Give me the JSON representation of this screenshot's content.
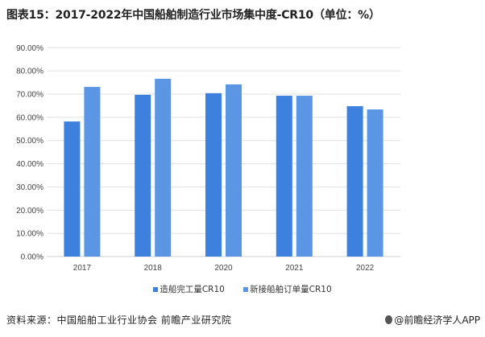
{
  "title": "图表15：2017-2022年中国船舶制造行业市场集中度-CR10（单位：%）",
  "chart_data": {
    "type": "bar",
    "categories": [
      "2017",
      "2018",
      "2020",
      "2021",
      "2022"
    ],
    "series": [
      {
        "name": "造船完工量CR10",
        "values": [
          58.2,
          69.7,
          70.4,
          69.3,
          64.8
        ],
        "color": "#3d80dd"
      },
      {
        "name": "新接船舶订单量CR10",
        "values": [
          73.1,
          76.6,
          74.2,
          69.3,
          63.4
        ],
        "color": "#5a96e3"
      }
    ],
    "ylim": [
      0,
      90
    ],
    "yticks": [
      "0.00%",
      "10.00%",
      "20.00%",
      "30.00%",
      "40.00%",
      "50.00%",
      "60.00%",
      "70.00%",
      "80.00%",
      "90.00%"
    ],
    "grid": true,
    "legend": "bottom"
  },
  "footer": {
    "source": "资料来源：中国船舶工业行业协会 前瞻产业研究院",
    "brand": "@前瞻经济学人APP"
  }
}
